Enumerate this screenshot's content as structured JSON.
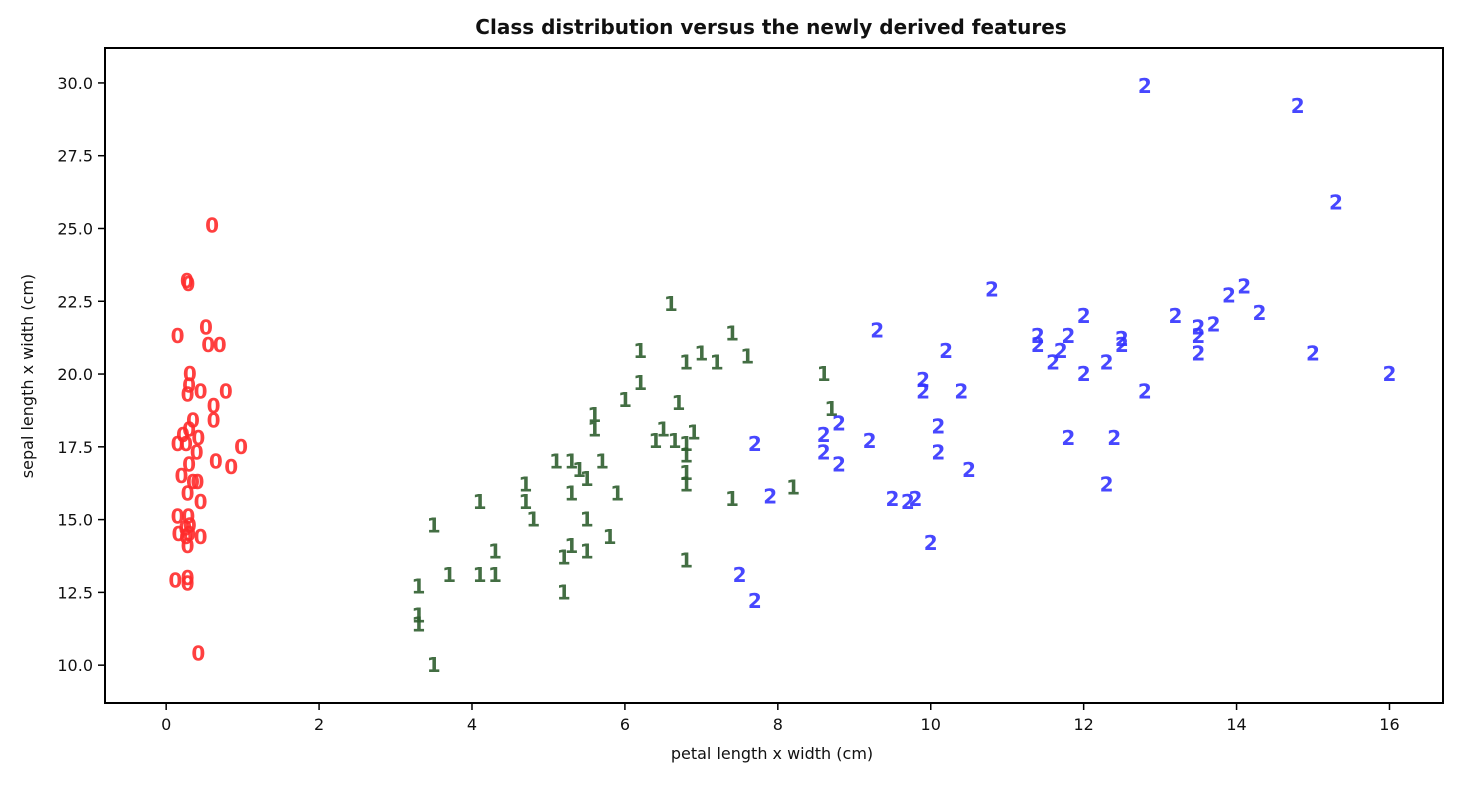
{
  "chart_data": {
    "type": "scatter",
    "title": "Class distribution versus the newly derived features",
    "xlabel": "petal length x width (cm)",
    "ylabel": "sepal length x width (cm)",
    "xlim": [
      -0.8,
      16.7
    ],
    "ylim": [
      8.7,
      31.2
    ],
    "xticks": [
      0,
      2,
      4,
      6,
      8,
      10,
      12,
      14,
      16
    ],
    "xtick_labels": [
      "0",
      "2",
      "4",
      "6",
      "8",
      "10",
      "12",
      "14",
      "16"
    ],
    "yticks": [
      10.0,
      12.5,
      15.0,
      17.5,
      20.0,
      22.5,
      25.0,
      27.5,
      30.0
    ],
    "ytick_labels": [
      "10.0",
      "12.5",
      "15.0",
      "17.5",
      "20.0",
      "22.5",
      "25.0",
      "27.5",
      "30.0"
    ],
    "grid": false,
    "marker_style": "class label text",
    "series": [
      {
        "label": "0",
        "color": "#ff2b2b",
        "points": [
          [
            0.6,
            25.1
          ],
          [
            0.27,
            23.2
          ],
          [
            0.29,
            23.1
          ],
          [
            0.15,
            21.3
          ],
          [
            0.52,
            21.6
          ],
          [
            0.55,
            21.0
          ],
          [
            0.7,
            21.0
          ],
          [
            0.31,
            20.0
          ],
          [
            0.3,
            19.6
          ],
          [
            0.28,
            19.3
          ],
          [
            0.45,
            19.4
          ],
          [
            0.78,
            19.4
          ],
          [
            0.62,
            18.9
          ],
          [
            0.62,
            18.4
          ],
          [
            0.35,
            18.4
          ],
          [
            0.22,
            17.9
          ],
          [
            0.3,
            18.1
          ],
          [
            0.42,
            17.8
          ],
          [
            0.15,
            17.6
          ],
          [
            0.26,
            17.6
          ],
          [
            0.4,
            17.3
          ],
          [
            0.98,
            17.5
          ],
          [
            0.65,
            17.0
          ],
          [
            0.85,
            16.8
          ],
          [
            0.3,
            16.9
          ],
          [
            0.2,
            16.5
          ],
          [
            0.35,
            16.3
          ],
          [
            0.41,
            16.3
          ],
          [
            0.28,
            15.9
          ],
          [
            0.45,
            15.6
          ],
          [
            0.15,
            15.1
          ],
          [
            0.29,
            15.1
          ],
          [
            0.31,
            14.8
          ],
          [
            0.25,
            14.7
          ],
          [
            0.16,
            14.5
          ],
          [
            0.26,
            14.4
          ],
          [
            0.3,
            14.5
          ],
          [
            0.45,
            14.4
          ],
          [
            0.28,
            14.1
          ],
          [
            0.28,
            13.0
          ],
          [
            0.12,
            12.9
          ],
          [
            0.28,
            12.8
          ],
          [
            0.42,
            10.4
          ]
        ]
      },
      {
        "label": "1",
        "color": "#2f5e2f",
        "points": [
          [
            6.6,
            22.4
          ],
          [
            7.4,
            21.4
          ],
          [
            6.2,
            20.8
          ],
          [
            7.0,
            20.7
          ],
          [
            7.6,
            20.6
          ],
          [
            7.2,
            20.4
          ],
          [
            6.8,
            20.4
          ],
          [
            8.6,
            20.0
          ],
          [
            6.2,
            19.7
          ],
          [
            6.0,
            19.1
          ],
          [
            6.7,
            19.0
          ],
          [
            8.7,
            18.8
          ],
          [
            5.6,
            18.6
          ],
          [
            5.6,
            18.1
          ],
          [
            6.5,
            18.1
          ],
          [
            6.9,
            18.0
          ],
          [
            6.4,
            17.7
          ],
          [
            6.65,
            17.7
          ],
          [
            6.8,
            17.6
          ],
          [
            6.8,
            17.2
          ],
          [
            6.8,
            16.6
          ],
          [
            6.8,
            16.2
          ],
          [
            5.7,
            17.0
          ],
          [
            5.1,
            17.0
          ],
          [
            5.3,
            17.0
          ],
          [
            5.4,
            16.7
          ],
          [
            5.5,
            16.4
          ],
          [
            4.7,
            16.2
          ],
          [
            5.3,
            15.9
          ],
          [
            5.9,
            15.9
          ],
          [
            8.2,
            16.1
          ],
          [
            7.4,
            15.7
          ],
          [
            4.1,
            15.6
          ],
          [
            4.7,
            15.6
          ],
          [
            4.8,
            15.0
          ],
          [
            5.5,
            15.0
          ],
          [
            3.5,
            14.8
          ],
          [
            5.8,
            14.4
          ],
          [
            5.3,
            14.1
          ],
          [
            5.5,
            13.9
          ],
          [
            4.3,
            13.9
          ],
          [
            5.2,
            13.7
          ],
          [
            6.8,
            13.6
          ],
          [
            3.7,
            13.1
          ],
          [
            4.1,
            13.1
          ],
          [
            4.3,
            13.1
          ],
          [
            3.3,
            12.7
          ],
          [
            5.2,
            12.5
          ],
          [
            3.3,
            11.7
          ],
          [
            3.3,
            11.4
          ],
          [
            3.5,
            10.0
          ]
        ]
      },
      {
        "label": "2",
        "color": "#3333ff",
        "points": [
          [
            12.8,
            29.9
          ],
          [
            14.8,
            29.2
          ],
          [
            15.3,
            25.9
          ],
          [
            10.8,
            22.9
          ],
          [
            14.1,
            23.0
          ],
          [
            13.9,
            22.7
          ],
          [
            12.0,
            22.0
          ],
          [
            14.3,
            22.1
          ],
          [
            13.2,
            22.0
          ],
          [
            13.7,
            21.7
          ],
          [
            9.3,
            21.5
          ],
          [
            13.5,
            21.6
          ],
          [
            11.4,
            21.3
          ],
          [
            11.8,
            21.3
          ],
          [
            13.5,
            21.3
          ],
          [
            12.5,
            21.2
          ],
          [
            11.4,
            21.0
          ],
          [
            12.5,
            21.0
          ],
          [
            10.2,
            20.8
          ],
          [
            11.7,
            20.8
          ],
          [
            11.6,
            20.4
          ],
          [
            12.3,
            20.4
          ],
          [
            15.0,
            20.7
          ],
          [
            13.5,
            20.7
          ],
          [
            9.9,
            19.8
          ],
          [
            12.0,
            20.0
          ],
          [
            16.0,
            20.0
          ],
          [
            9.9,
            19.4
          ],
          [
            10.4,
            19.4
          ],
          [
            12.8,
            19.4
          ],
          [
            8.8,
            18.3
          ],
          [
            10.1,
            18.2
          ],
          [
            8.6,
            17.9
          ],
          [
            11.8,
            17.8
          ],
          [
            12.4,
            17.8
          ],
          [
            7.7,
            17.6
          ],
          [
            9.2,
            17.7
          ],
          [
            8.6,
            17.3
          ],
          [
            10.1,
            17.3
          ],
          [
            8.8,
            16.9
          ],
          [
            10.5,
            16.7
          ],
          [
            12.3,
            16.2
          ],
          [
            7.9,
            15.8
          ],
          [
            9.5,
            15.7
          ],
          [
            9.7,
            15.6
          ],
          [
            9.8,
            15.7
          ],
          [
            10.0,
            14.2
          ],
          [
            7.5,
            13.1
          ],
          [
            7.7,
            12.2
          ]
        ]
      }
    ]
  }
}
